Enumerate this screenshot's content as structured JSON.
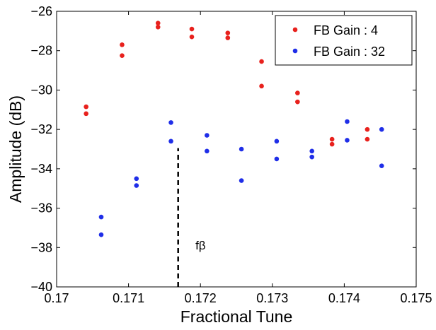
{
  "chart_data": {
    "type": "scatter",
    "xlabel": "Fractional Tune",
    "ylabel": "Amplitude (dB)",
    "xlim": [
      0.17,
      0.175
    ],
    "ylim": [
      -40,
      -26
    ],
    "xticks": [
      0.17,
      0.171,
      0.172,
      0.173,
      0.174,
      0.175
    ],
    "xtick_labels": [
      "0.17",
      "0.171",
      "0.172",
      "0.173",
      "0.174",
      "0.175"
    ],
    "yticks": [
      -40,
      -38,
      -36,
      -34,
      -32,
      -30,
      -28,
      -26
    ],
    "ytick_labels": [
      "−40",
      "−38",
      "−36",
      "−34",
      "−32",
      "−30",
      "−28",
      "−26"
    ],
    "grid": false,
    "legend": {
      "placement": "top-right"
    },
    "series": [
      {
        "name": "FB Gain : 4",
        "color": "#e8211d",
        "x": [
          0.17041,
          0.17041,
          0.17091,
          0.17091,
          0.17141,
          0.17141,
          0.17188,
          0.17188,
          0.17238,
          0.17238,
          0.17285,
          0.17285,
          0.17335,
          0.17335,
          0.17383,
          0.17383,
          0.17432,
          0.17432
        ],
        "y": [
          -30.85,
          -31.2,
          -27.7,
          -28.25,
          -26.6,
          -26.8,
          -26.9,
          -27.3,
          -27.1,
          -27.35,
          -28.55,
          -29.8,
          -30.15,
          -30.6,
          -32.5,
          -32.75,
          -32.0,
          -32.5
        ]
      },
      {
        "name": "FB Gain : 32",
        "color": "#1f2ee8",
        "x": [
          0.17062,
          0.17062,
          0.17111,
          0.17111,
          0.17159,
          0.17159,
          0.17209,
          0.17209,
          0.17257,
          0.17257,
          0.17306,
          0.17306,
          0.17355,
          0.17355,
          0.17404,
          0.17404,
          0.17452,
          0.17452
        ],
        "y": [
          -36.45,
          -37.35,
          -34.5,
          -34.85,
          -31.65,
          -32.6,
          -32.3,
          -33.1,
          -33.0,
          -34.6,
          -32.6,
          -33.5,
          -33.1,
          -33.4,
          -31.6,
          -32.55,
          -32.0,
          -33.85
        ]
      }
    ],
    "annotations": [
      {
        "type": "dashed-line",
        "x": 0.17169,
        "y_from": -40,
        "y_to": -32.95,
        "color": "#000000"
      },
      {
        "type": "text",
        "text": "fβ",
        "x": 0.17193,
        "y": -38.1
      }
    ]
  }
}
